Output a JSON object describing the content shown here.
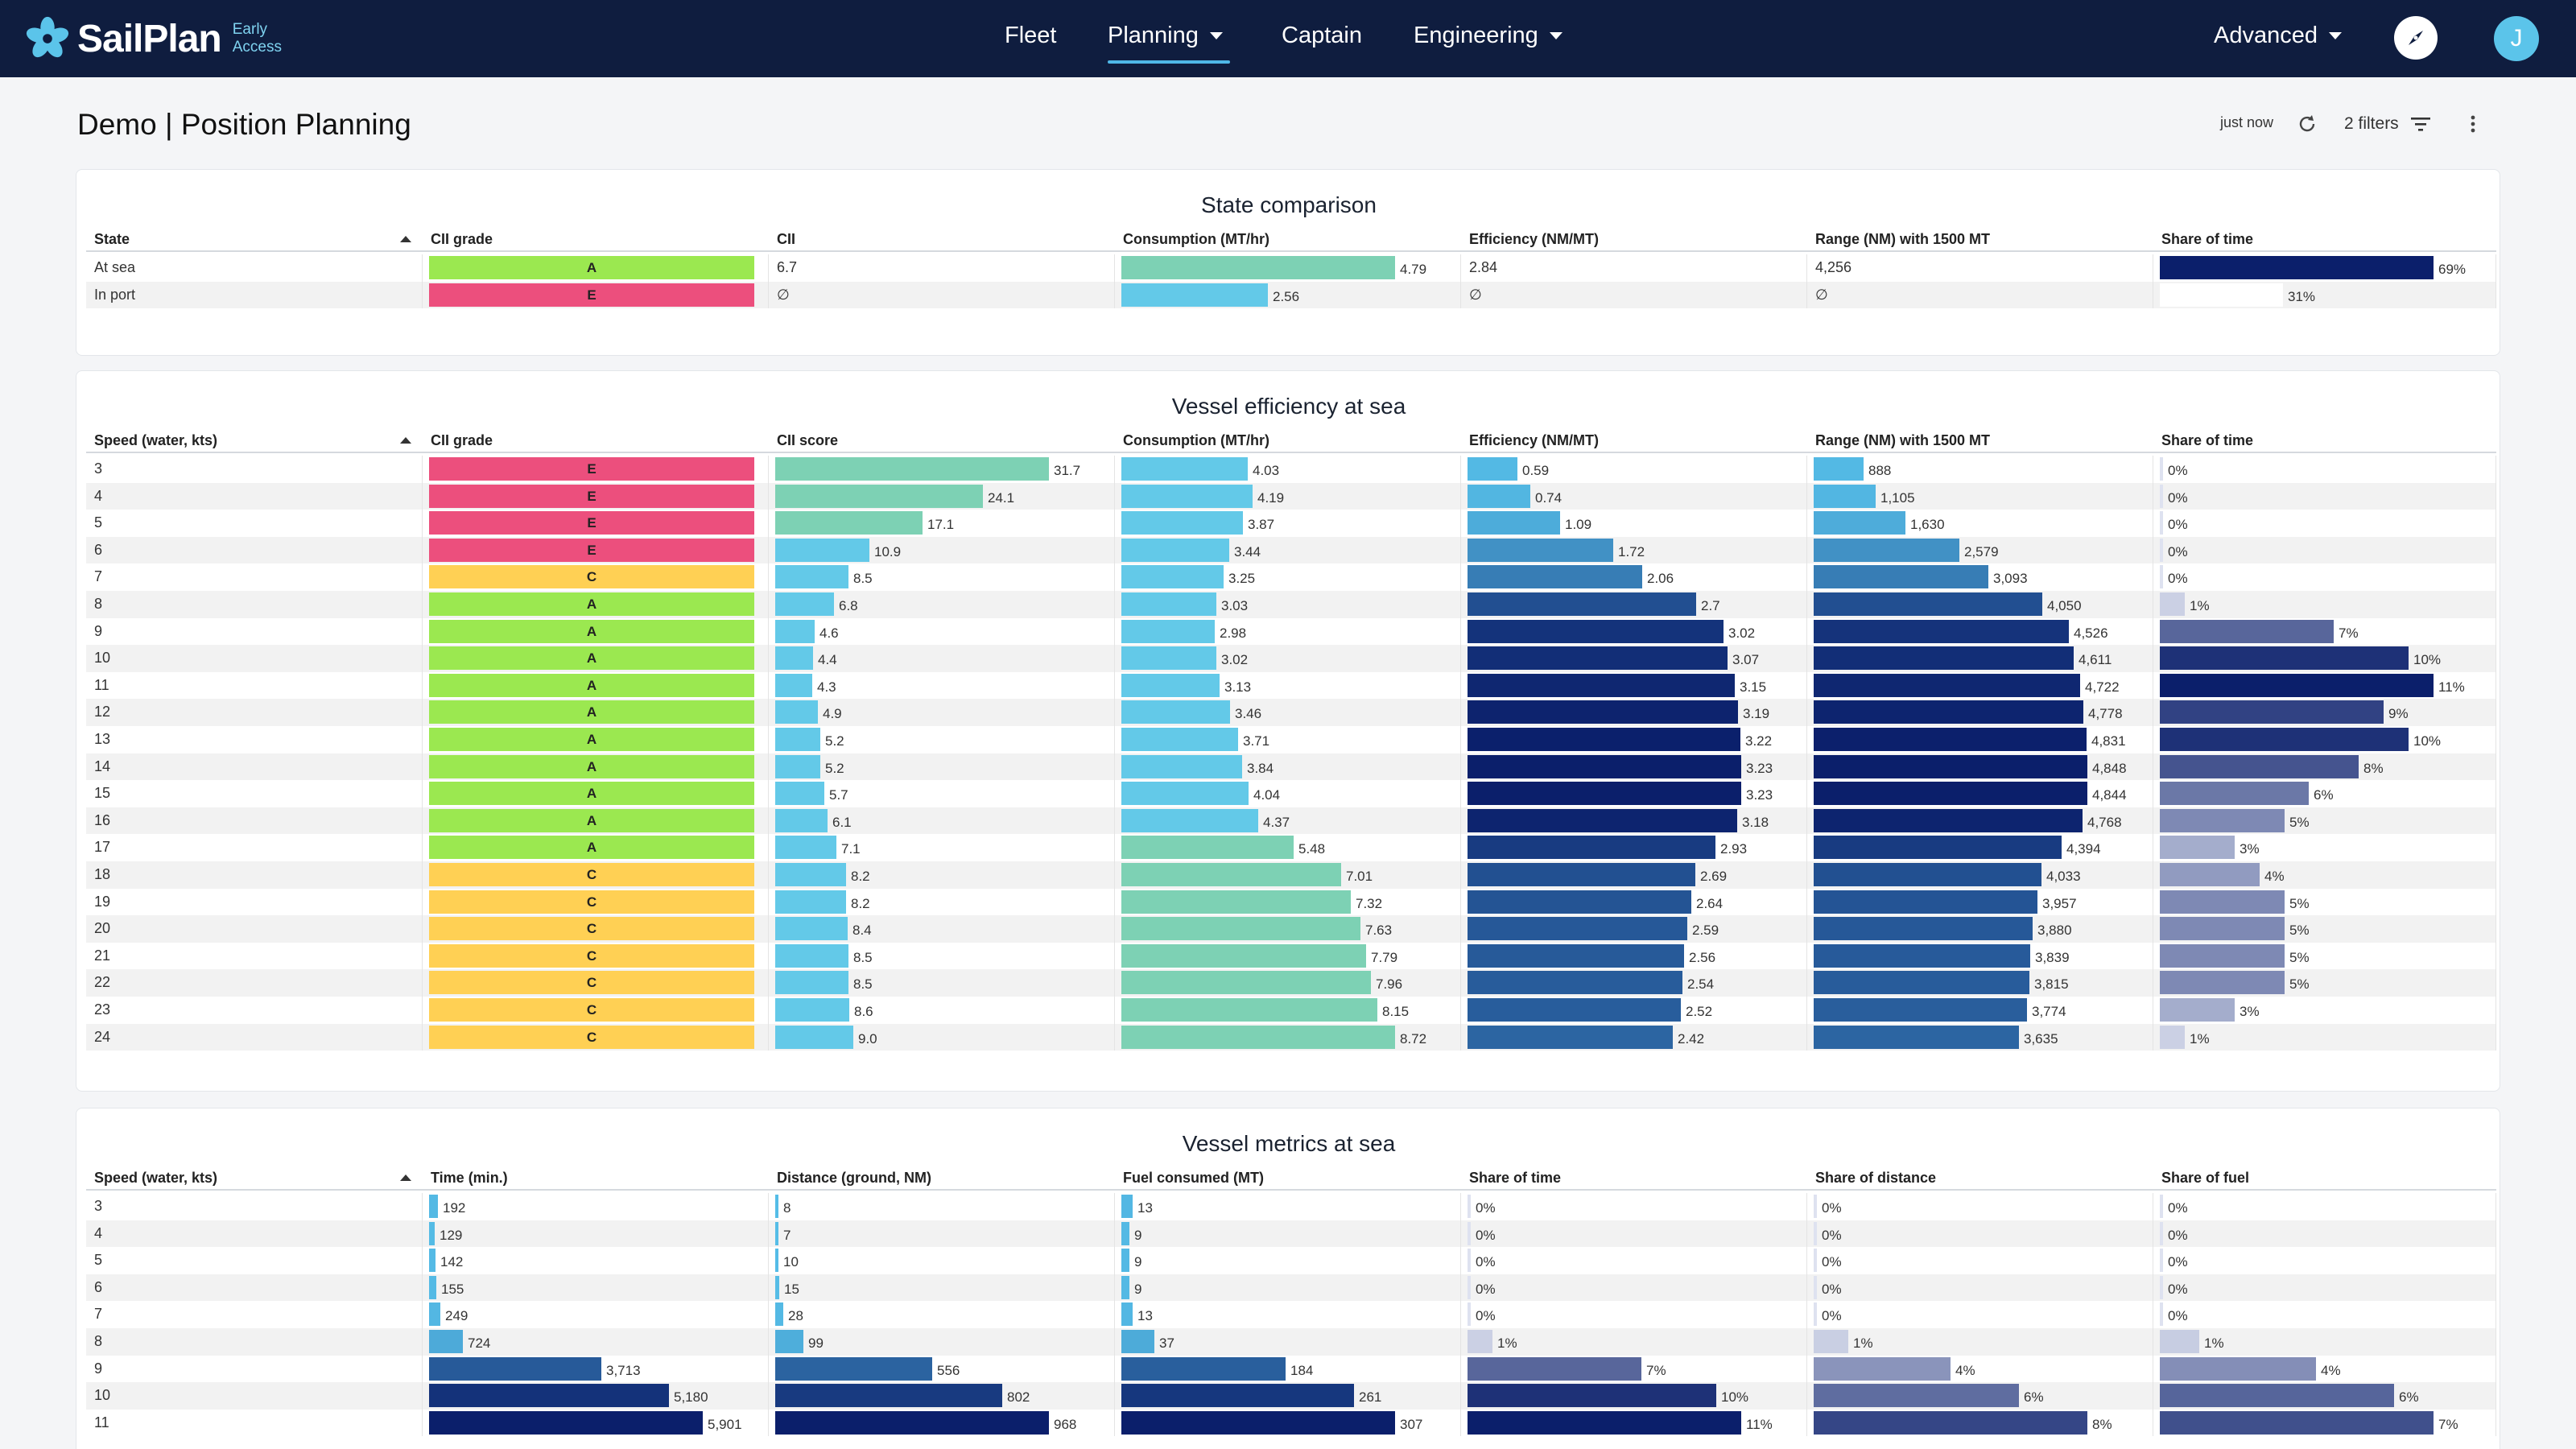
{
  "brand": {
    "name": "SailPlan",
    "sub1": "Early",
    "sub2": "Access"
  },
  "nav": {
    "items": [
      {
        "label": "Fleet",
        "dropdown": false
      },
      {
        "label": "Planning",
        "dropdown": true,
        "active": true
      },
      {
        "label": "Captain",
        "dropdown": false
      },
      {
        "label": "Engineering",
        "dropdown": true
      }
    ],
    "mode": "Advanced",
    "avatar_initial": "J"
  },
  "page": {
    "title": "Demo | Position Planning",
    "updated": "just now",
    "filters": "2 filters"
  },
  "colors": {
    "grade_A": "#9be850",
    "grade_C": "#ffd054",
    "grade_E": "#ec4f7d",
    "teal": "#7dd1b4",
    "sky": "#63c9e8",
    "navy": "#0b1f6b"
  },
  "state_comparison": {
    "title": "State comparison",
    "headers": [
      "State",
      "CII grade",
      "CII",
      "Consumption (MT/hr)",
      "Efficiency (NM/MT)",
      "Range (NM) with 1500 MT",
      "Share of time"
    ],
    "rows": [
      {
        "state": "At sea",
        "grade": "A",
        "cii": "6.7",
        "consumption": "4.79",
        "efficiency": "2.84",
        "range": "4,256",
        "share": "69%"
      },
      {
        "state": "In port",
        "grade": "E",
        "cii": "∅",
        "consumption": "2.56",
        "efficiency": "∅",
        "range": "∅",
        "share": "31%"
      }
    ]
  },
  "efficiency": {
    "title": "Vessel efficiency at sea",
    "headers": [
      "Speed (water, kts)",
      "CII grade",
      "CII score",
      "Consumption (MT/hr)",
      "Efficiency (NM/MT)",
      "Range (NM) with 1500 MT",
      "Share of time"
    ],
    "rows": [
      {
        "speed": "3",
        "grade": "E",
        "cii": "31.7",
        "consumption": "4.03",
        "efficiency": "0.59",
        "range": "888",
        "share": "0%"
      },
      {
        "speed": "4",
        "grade": "E",
        "cii": "24.1",
        "consumption": "4.19",
        "efficiency": "0.74",
        "range": "1,105",
        "share": "0%"
      },
      {
        "speed": "5",
        "grade": "E",
        "cii": "17.1",
        "consumption": "3.87",
        "efficiency": "1.09",
        "range": "1,630",
        "share": "0%"
      },
      {
        "speed": "6",
        "grade": "E",
        "cii": "10.9",
        "consumption": "3.44",
        "efficiency": "1.72",
        "range": "2,579",
        "share": "0%"
      },
      {
        "speed": "7",
        "grade": "C",
        "cii": "8.5",
        "consumption": "3.25",
        "efficiency": "2.06",
        "range": "3,093",
        "share": "0%"
      },
      {
        "speed": "8",
        "grade": "A",
        "cii": "6.8",
        "consumption": "3.03",
        "efficiency": "2.7",
        "range": "4,050",
        "share": "1%"
      },
      {
        "speed": "9",
        "grade": "A",
        "cii": "4.6",
        "consumption": "2.98",
        "efficiency": "3.02",
        "range": "4,526",
        "share": "7%"
      },
      {
        "speed": "10",
        "grade": "A",
        "cii": "4.4",
        "consumption": "3.02",
        "efficiency": "3.07",
        "range": "4,611",
        "share": "10%"
      },
      {
        "speed": "11",
        "grade": "A",
        "cii": "4.3",
        "consumption": "3.13",
        "efficiency": "3.15",
        "range": "4,722",
        "share": "11%"
      },
      {
        "speed": "12",
        "grade": "A",
        "cii": "4.9",
        "consumption": "3.46",
        "efficiency": "3.19",
        "range": "4,778",
        "share": "9%"
      },
      {
        "speed": "13",
        "grade": "A",
        "cii": "5.2",
        "consumption": "3.71",
        "efficiency": "3.22",
        "range": "4,831",
        "share": "10%"
      },
      {
        "speed": "14",
        "grade": "A",
        "cii": "5.2",
        "consumption": "3.84",
        "efficiency": "3.23",
        "range": "4,848",
        "share": "8%"
      },
      {
        "speed": "15",
        "grade": "A",
        "cii": "5.7",
        "consumption": "4.04",
        "efficiency": "3.23",
        "range": "4,844",
        "share": "6%"
      },
      {
        "speed": "16",
        "grade": "A",
        "cii": "6.1",
        "consumption": "4.37",
        "efficiency": "3.18",
        "range": "4,768",
        "share": "5%"
      },
      {
        "speed": "17",
        "grade": "A",
        "cii": "7.1",
        "consumption": "5.48",
        "efficiency": "2.93",
        "range": "4,394",
        "share": "3%"
      },
      {
        "speed": "18",
        "grade": "C",
        "cii": "8.2",
        "consumption": "7.01",
        "efficiency": "2.69",
        "range": "4,033",
        "share": "4%"
      },
      {
        "speed": "19",
        "grade": "C",
        "cii": "8.2",
        "consumption": "7.32",
        "efficiency": "2.64",
        "range": "3,957",
        "share": "5%"
      },
      {
        "speed": "20",
        "grade": "C",
        "cii": "8.4",
        "consumption": "7.63",
        "efficiency": "2.59",
        "range": "3,880",
        "share": "5%"
      },
      {
        "speed": "21",
        "grade": "C",
        "cii": "8.5",
        "consumption": "7.79",
        "efficiency": "2.56",
        "range": "3,839",
        "share": "5%"
      },
      {
        "speed": "22",
        "grade": "C",
        "cii": "8.5",
        "consumption": "7.96",
        "efficiency": "2.54",
        "range": "3,815",
        "share": "5%"
      },
      {
        "speed": "23",
        "grade": "C",
        "cii": "8.6",
        "consumption": "8.15",
        "efficiency": "2.52",
        "range": "3,774",
        "share": "3%"
      },
      {
        "speed": "24",
        "grade": "C",
        "cii": "9.0",
        "consumption": "8.72",
        "efficiency": "2.42",
        "range": "3,635",
        "share": "1%"
      }
    ]
  },
  "metrics": {
    "title": "Vessel metrics at sea",
    "headers": [
      "Speed (water, kts)",
      "Time (min.)",
      "Distance (ground, NM)",
      "Fuel consumed (MT)",
      "Share of time",
      "Share of distance",
      "Share of fuel"
    ],
    "rows": [
      {
        "speed": "3",
        "time": "192",
        "distance": "8",
        "fuel": "13",
        "share_time": "0%",
        "share_distance": "0%",
        "share_fuel": "0%"
      },
      {
        "speed": "4",
        "time": "129",
        "distance": "7",
        "fuel": "9",
        "share_time": "0%",
        "share_distance": "0%",
        "share_fuel": "0%"
      },
      {
        "speed": "5",
        "time": "142",
        "distance": "10",
        "fuel": "9",
        "share_time": "0%",
        "share_distance": "0%",
        "share_fuel": "0%"
      },
      {
        "speed": "6",
        "time": "155",
        "distance": "15",
        "fuel": "9",
        "share_time": "0%",
        "share_distance": "0%",
        "share_fuel": "0%"
      },
      {
        "speed": "7",
        "time": "249",
        "distance": "28",
        "fuel": "13",
        "share_time": "0%",
        "share_distance": "0%",
        "share_fuel": "0%"
      },
      {
        "speed": "8",
        "time": "724",
        "distance": "99",
        "fuel": "37",
        "share_time": "1%",
        "share_distance": "1%",
        "share_fuel": "1%"
      },
      {
        "speed": "9",
        "time": "3,713",
        "distance": "556",
        "fuel": "184",
        "share_time": "7%",
        "share_distance": "4%",
        "share_fuel": "4%"
      },
      {
        "speed": "10",
        "time": "5,180",
        "distance": "802",
        "fuel": "261",
        "share_time": "10%",
        "share_distance": "6%",
        "share_fuel": "6%"
      },
      {
        "speed": "11",
        "time": "5,901",
        "distance": "968",
        "fuel": "307",
        "share_time": "11%",
        "share_distance": "8%",
        "share_fuel": "7%"
      }
    ]
  }
}
